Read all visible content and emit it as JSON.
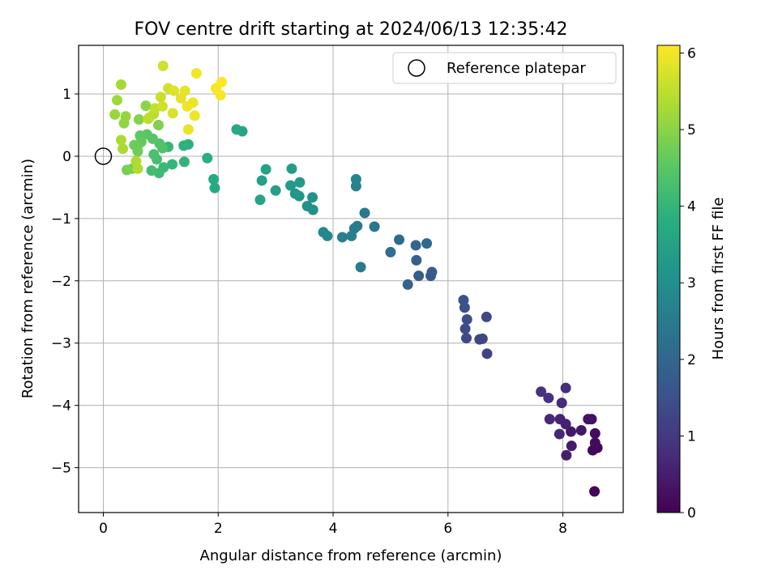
{
  "chart_data": {
    "type": "scatter",
    "title": "FOV centre drift starting at 2024/06/13 12:35:42",
    "xlabel": "Angular distance from reference (arcmin)",
    "ylabel": "Rotation from reference (arcmin)",
    "xlim": [
      -0.43,
      9.05
    ],
    "ylim": [
      -5.72,
      1.78
    ],
    "xticks": [
      0,
      2,
      4,
      6,
      8
    ],
    "yticks": [
      -5,
      -4,
      -3,
      -2,
      -1,
      0,
      1
    ],
    "grid": true,
    "legend": {
      "position": "top-right",
      "entries": [
        "Reference platepar"
      ]
    },
    "reference_point": {
      "name": "Reference platepar",
      "x": 0,
      "y": 0,
      "marker": "open-circle"
    },
    "colorbar": {
      "label": "Hours from first FF file",
      "range": [
        0,
        6.1
      ],
      "ticks": [
        0,
        1,
        2,
        3,
        4,
        5,
        6
      ],
      "colormap": "viridis"
    },
    "points": [
      {
        "x": 8.55,
        "y": -5.38,
        "c": 0.05
      },
      {
        "x": 8.6,
        "y": -4.68,
        "c": 0.08
      },
      {
        "x": 8.52,
        "y": -4.72,
        "c": 0.12
      },
      {
        "x": 8.56,
        "y": -4.6,
        "c": 0.15
      },
      {
        "x": 8.56,
        "y": -4.45,
        "c": 0.2
      },
      {
        "x": 8.5,
        "y": -4.22,
        "c": 0.25
      },
      {
        "x": 8.44,
        "y": -4.22,
        "c": 0.3
      },
      {
        "x": 8.32,
        "y": -4.4,
        "c": 0.35
      },
      {
        "x": 8.14,
        "y": -4.42,
        "c": 0.4
      },
      {
        "x": 8.15,
        "y": -4.65,
        "c": 0.45
      },
      {
        "x": 8.06,
        "y": -4.8,
        "c": 0.5
      },
      {
        "x": 8.05,
        "y": -4.3,
        "c": 0.55
      },
      {
        "x": 7.95,
        "y": -4.22,
        "c": 0.6
      },
      {
        "x": 7.94,
        "y": -4.46,
        "c": 0.65
      },
      {
        "x": 7.77,
        "y": -4.22,
        "c": 0.7
      },
      {
        "x": 7.98,
        "y": -3.96,
        "c": 0.75
      },
      {
        "x": 8.05,
        "y": -3.72,
        "c": 0.78
      },
      {
        "x": 7.75,
        "y": -3.88,
        "c": 0.85
      },
      {
        "x": 7.62,
        "y": -3.78,
        "c": 0.9
      },
      {
        "x": 6.68,
        "y": -3.17,
        "c": 1.2
      },
      {
        "x": 6.55,
        "y": -2.94,
        "c": 1.25
      },
      {
        "x": 6.6,
        "y": -2.93,
        "c": 1.28
      },
      {
        "x": 6.67,
        "y": -2.58,
        "c": 1.3
      },
      {
        "x": 6.32,
        "y": -2.92,
        "c": 1.35
      },
      {
        "x": 6.3,
        "y": -2.77,
        "c": 1.4
      },
      {
        "x": 6.33,
        "y": -2.62,
        "c": 1.45
      },
      {
        "x": 6.29,
        "y": -2.43,
        "c": 1.5
      },
      {
        "x": 6.27,
        "y": -2.31,
        "c": 1.55
      },
      {
        "x": 5.7,
        "y": -1.92,
        "c": 1.7
      },
      {
        "x": 5.72,
        "y": -1.86,
        "c": 1.75
      },
      {
        "x": 5.49,
        "y": -1.92,
        "c": 1.8
      },
      {
        "x": 5.45,
        "y": -1.67,
        "c": 1.85
      },
      {
        "x": 5.3,
        "y": -2.06,
        "c": 1.9
      },
      {
        "x": 5.44,
        "y": -1.43,
        "c": 2.0
      },
      {
        "x": 5.63,
        "y": -1.4,
        "c": 2.05
      },
      {
        "x": 5.15,
        "y": -1.34,
        "c": 2.1
      },
      {
        "x": 5.0,
        "y": -1.54,
        "c": 2.2
      },
      {
        "x": 4.72,
        "y": -1.13,
        "c": 2.35
      },
      {
        "x": 4.55,
        "y": -0.91,
        "c": 2.4
      },
      {
        "x": 4.48,
        "y": -1.78,
        "c": 2.45
      },
      {
        "x": 4.42,
        "y": -1.12,
        "c": 2.5
      },
      {
        "x": 4.37,
        "y": -1.16,
        "c": 2.55
      },
      {
        "x": 4.32,
        "y": -1.28,
        "c": 2.6
      },
      {
        "x": 4.16,
        "y": -1.3,
        "c": 2.65
      },
      {
        "x": 4.4,
        "y": -0.48,
        "c": 2.7
      },
      {
        "x": 4.4,
        "y": -0.37,
        "c": 2.75
      },
      {
        "x": 3.9,
        "y": -1.28,
        "c": 2.8
      },
      {
        "x": 3.83,
        "y": -1.22,
        "c": 2.85
      },
      {
        "x": 3.65,
        "y": -0.86,
        "c": 3.0
      },
      {
        "x": 3.55,
        "y": -0.8,
        "c": 3.05
      },
      {
        "x": 3.64,
        "y": -0.66,
        "c": 3.1
      },
      {
        "x": 3.41,
        "y": -0.64,
        "c": 3.15
      },
      {
        "x": 3.34,
        "y": -0.6,
        "c": 3.2
      },
      {
        "x": 3.42,
        "y": -0.42,
        "c": 3.25
      },
      {
        "x": 3.26,
        "y": -0.47,
        "c": 3.3
      },
      {
        "x": 3.28,
        "y": -0.2,
        "c": 3.35
      },
      {
        "x": 3.0,
        "y": -0.55,
        "c": 3.4
      },
      {
        "x": 2.76,
        "y": -0.39,
        "c": 3.45
      },
      {
        "x": 2.83,
        "y": -0.21,
        "c": 3.5
      },
      {
        "x": 2.73,
        "y": -0.7,
        "c": 3.55
      },
      {
        "x": 2.42,
        "y": 0.4,
        "c": 3.6
      },
      {
        "x": 2.32,
        "y": 0.43,
        "c": 3.65
      },
      {
        "x": 1.94,
        "y": -0.51,
        "c": 3.7
      },
      {
        "x": 1.92,
        "y": -0.37,
        "c": 3.75
      },
      {
        "x": 1.81,
        "y": -0.03,
        "c": 3.8
      },
      {
        "x": 1.48,
        "y": 0.19,
        "c": 3.85
      },
      {
        "x": 1.4,
        "y": 0.17,
        "c": 3.9
      },
      {
        "x": 1.41,
        "y": -0.09,
        "c": 3.95
      },
      {
        "x": 1.2,
        "y": -0.13,
        "c": 4.0
      },
      {
        "x": 1.13,
        "y": 0.15,
        "c": 4.05
      },
      {
        "x": 1.05,
        "y": -0.18,
        "c": 4.1
      },
      {
        "x": 0.97,
        "y": -0.27,
        "c": 4.15
      },
      {
        "x": 0.84,
        "y": -0.23,
        "c": 4.2
      },
      {
        "x": 0.93,
        "y": -0.05,
        "c": 4.25
      },
      {
        "x": 0.88,
        "y": 0.03,
        "c": 4.3
      },
      {
        "x": 1.03,
        "y": 0.13,
        "c": 4.35
      },
      {
        "x": 0.98,
        "y": 0.2,
        "c": 4.4
      },
      {
        "x": 0.86,
        "y": 0.28,
        "c": 4.45
      },
      {
        "x": 0.76,
        "y": 0.35,
        "c": 4.5
      },
      {
        "x": 0.64,
        "y": 0.33,
        "c": 4.55
      },
      {
        "x": 0.66,
        "y": 0.23,
        "c": 4.6
      },
      {
        "x": 0.6,
        "y": 0.18,
        "c": 4.65
      },
      {
        "x": 0.54,
        "y": 0.18,
        "c": 4.7
      },
      {
        "x": 0.6,
        "y": 0.08,
        "c": 4.75
      },
      {
        "x": 0.41,
        "y": -0.22,
        "c": 4.8
      },
      {
        "x": 0.5,
        "y": -0.2,
        "c": 4.85
      },
      {
        "x": 0.96,
        "y": 0.5,
        "c": 4.9
      },
      {
        "x": 0.62,
        "y": 0.59,
        "c": 4.95
      },
      {
        "x": 0.74,
        "y": 0.81,
        "c": 5.0
      },
      {
        "x": 0.36,
        "y": 0.53,
        "c": 5.05
      },
      {
        "x": 0.39,
        "y": 0.64,
        "c": 5.1
      },
      {
        "x": 0.2,
        "y": 0.67,
        "c": 5.15
      },
      {
        "x": 0.24,
        "y": 0.9,
        "c": 5.2
      },
      {
        "x": 0.31,
        "y": 1.15,
        "c": 5.25
      },
      {
        "x": 0.34,
        "y": 0.12,
        "c": 5.3
      },
      {
        "x": 0.31,
        "y": 0.26,
        "c": 5.3
      },
      {
        "x": 0.57,
        "y": -0.08,
        "c": 5.35
      },
      {
        "x": 0.6,
        "y": -0.2,
        "c": 5.35
      },
      {
        "x": 0.8,
        "y": 0.62,
        "c": 5.4
      },
      {
        "x": 0.88,
        "y": 0.68,
        "c": 5.45
      },
      {
        "x": 0.78,
        "y": 0.6,
        "c": 5.5
      },
      {
        "x": 0.9,
        "y": 0.77,
        "c": 5.55
      },
      {
        "x": 1.0,
        "y": 0.95,
        "c": 5.6
      },
      {
        "x": 1.03,
        "y": 0.8,
        "c": 5.65
      },
      {
        "x": 1.04,
        "y": 1.45,
        "c": 5.65
      },
      {
        "x": 1.13,
        "y": 1.09,
        "c": 5.7
      },
      {
        "x": 1.21,
        "y": 0.69,
        "c": 5.75
      },
      {
        "x": 1.23,
        "y": 1.05,
        "c": 5.8
      },
      {
        "x": 1.35,
        "y": 0.93,
        "c": 5.85
      },
      {
        "x": 1.42,
        "y": 1.05,
        "c": 5.88
      },
      {
        "x": 1.48,
        "y": 0.43,
        "c": 5.9
      },
      {
        "x": 1.56,
        "y": 0.86,
        "c": 5.93
      },
      {
        "x": 1.59,
        "y": 0.65,
        "c": 5.96
      },
      {
        "x": 1.46,
        "y": 0.8,
        "c": 5.98
      },
      {
        "x": 1.62,
        "y": 1.33,
        "c": 6.0
      },
      {
        "x": 1.96,
        "y": 1.09,
        "c": 6.03
      },
      {
        "x": 2.04,
        "y": 0.98,
        "c": 6.06
      },
      {
        "x": 2.06,
        "y": 1.19,
        "c": 6.1
      }
    ]
  }
}
